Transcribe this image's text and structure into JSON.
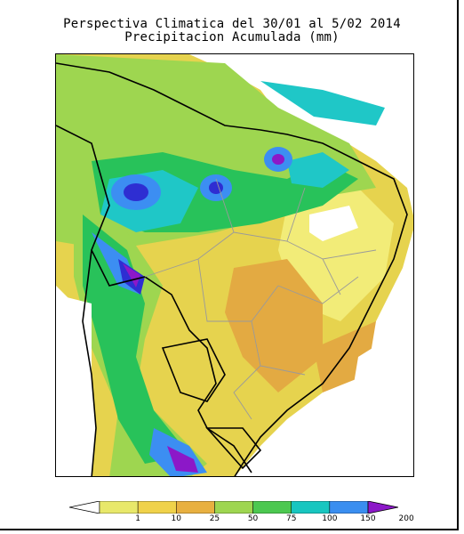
{
  "title": {
    "line1": "Perspectiva Climatica del 30/01 al 5/02 2014",
    "line2": "Precipitacion Acumulada (mm)"
  },
  "legend": {
    "ticks": [
      "1",
      "10",
      "25",
      "50",
      "75",
      "100",
      "150",
      "200"
    ],
    "colors": [
      "#e8e86a",
      "#f0d24a",
      "#e8b040",
      "#9ed650",
      "#4cc850",
      "#18c6c0",
      "#3a8ef0",
      "#3030d0",
      "#8c18c8"
    ]
  },
  "map_colors": {
    "ocean": "#ffffff",
    "low": "#e6d34e",
    "light": "#f2ec78",
    "mid": "#e3aa42",
    "green": "#9ed650",
    "greenDark": "#28c25a",
    "cyan": "#1fc7c7",
    "blue": "#3c8ef2",
    "navy": "#2e2ed2",
    "purple": "#8c18c8",
    "border": "#000000",
    "state": "#9a9a9a"
  }
}
